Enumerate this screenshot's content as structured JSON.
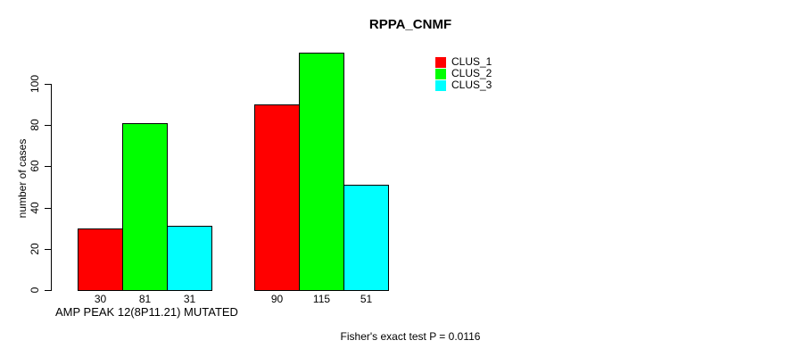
{
  "chart_data": {
    "type": "bar",
    "title": "RPPA_CNMF",
    "ylabel": "number of cases",
    "xlabel": "AMP PEAK 12(8P11.21) MUTATED",
    "footer": "Fisher's exact test P = 0.0116",
    "ylim": [
      0,
      115
    ],
    "yticks": [
      0,
      20,
      40,
      60,
      80,
      100
    ],
    "grid": false,
    "legend_position": "top-right",
    "groups": 2,
    "series": [
      {
        "name": "CLUS_1",
        "color": "#ff0000",
        "values": [
          30,
          90
        ]
      },
      {
        "name": "CLUS_2",
        "color": "#00ff00",
        "values": [
          81,
          115
        ]
      },
      {
        "name": "CLUS_3",
        "color": "#00ffff",
        "values": [
          31,
          51
        ]
      }
    ],
    "bar_value_labels": [
      [
        30,
        81,
        31
      ],
      [
        90,
        115,
        51
      ]
    ]
  },
  "colors": {
    "background": "#ffffff",
    "axis": "#000000",
    "bar_border": "#000000",
    "text": "#000000"
  }
}
